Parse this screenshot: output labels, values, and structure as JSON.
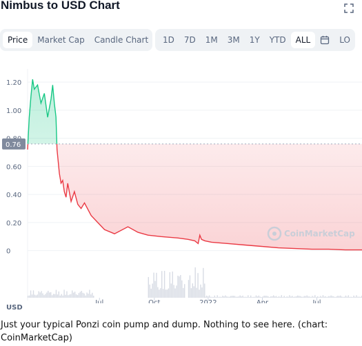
{
  "header": {
    "title": "Nimbus to USD Chart"
  },
  "tabs_left": [
    {
      "label": "Price",
      "active": true
    },
    {
      "label": "Market Cap",
      "active": false
    },
    {
      "label": "Candle Chart",
      "active": false
    }
  ],
  "tabs_right": [
    {
      "label": "1D",
      "active": false
    },
    {
      "label": "7D",
      "active": false
    },
    {
      "label": "1M",
      "active": false
    },
    {
      "label": "3M",
      "active": false
    },
    {
      "label": "1Y",
      "active": false
    },
    {
      "label": "YTD",
      "active": false
    },
    {
      "label": "ALL",
      "active": true
    }
  ],
  "calendar_icon": "calendar-icon",
  "extra_tab": "LO",
  "currency_label": "USD",
  "watermark": "CoinMarketCap",
  "caption": "Just your typical Ponzi coin pump and dump. Nothing to see here. (chart: CoinMarketCap)",
  "colors": {
    "up": "#16c784",
    "down": "#ea3943",
    "grid": "#eff2f5",
    "text": "#58667e"
  },
  "chart_data": {
    "type": "area",
    "title": "Nimbus to USD Chart",
    "ylabel": "USD",
    "current_price_label": "0.76",
    "baseline": 0.76,
    "ylim": [
      -0.1,
      1.25
    ],
    "yticks": [
      0,
      0.2,
      0.4,
      0.6,
      0.8,
      1.0,
      1.2
    ],
    "ytick_labels": [
      "0",
      "0.20",
      "0.40",
      "0.60",
      "0.80",
      "1.00",
      "1.20"
    ],
    "xticks": [
      {
        "label": "Jul",
        "t": 0.215
      },
      {
        "label": "Oct",
        "t": 0.379
      },
      {
        "label": "2022",
        "t": 0.54
      },
      {
        "label": "Apr",
        "t": 0.702
      },
      {
        "label": "Jul",
        "t": 0.865
      }
    ],
    "grid": true,
    "x": [
      0,
      0.005,
      0.01,
      0.015,
      0.02,
      0.03,
      0.04,
      0.05,
      0.06,
      0.07,
      0.075,
      0.08,
      0.085,
      0.088,
      0.091,
      0.095,
      0.1,
      0.105,
      0.11,
      0.115,
      0.12,
      0.13,
      0.14,
      0.15,
      0.16,
      0.17,
      0.19,
      0.21,
      0.23,
      0.26,
      0.3,
      0.33,
      0.36,
      0.4,
      0.45,
      0.48,
      0.5,
      0.51,
      0.515,
      0.52,
      0.53,
      0.55,
      0.6,
      0.65,
      0.7,
      0.75,
      0.8,
      0.85,
      0.9,
      0.95,
      1.0
    ],
    "y": [
      0.72,
      0.95,
      1.1,
      1.22,
      1.15,
      1.18,
      1.05,
      1.12,
      0.95,
      1.08,
      1.18,
      1.05,
      0.95,
      0.72,
      0.65,
      0.55,
      0.48,
      0.5,
      0.42,
      0.38,
      0.48,
      0.35,
      0.42,
      0.33,
      0.3,
      0.34,
      0.25,
      0.2,
      0.15,
      0.12,
      0.17,
      0.13,
      0.11,
      0.1,
      0.09,
      0.08,
      0.07,
      0.05,
      0.11,
      0.08,
      0.07,
      0.06,
      0.05,
      0.04,
      0.03,
      0.02,
      0.015,
      0.01,
      0.01,
      0.005,
      0.005
    ],
    "volume_clusters": [
      {
        "from": 0.0,
        "to": 0.2,
        "level": 0.25
      },
      {
        "from": 0.36,
        "to": 0.47,
        "level": 0.9
      },
      {
        "from": 0.48,
        "to": 0.53,
        "level": 0.95
      },
      {
        "from": 0.53,
        "to": 1.0,
        "level": 0.08
      }
    ]
  }
}
